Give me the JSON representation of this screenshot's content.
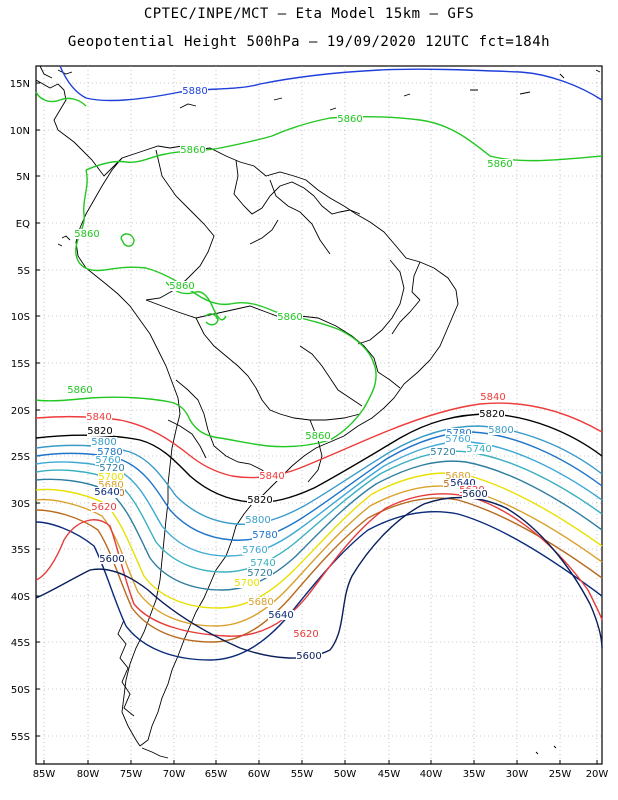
{
  "title_line1": "CPTEC/INPE/MCT –   Eta Model 15km – GFS",
  "title_line2": "Geopotential Height 500hPa – 19/09/2020 12UTC fct=184h",
  "lat_ticks": [
    "15N",
    "10N",
    "5N",
    "EQ",
    "5S",
    "10S",
    "15S",
    "20S",
    "25S",
    "30S",
    "35S",
    "40S",
    "45S",
    "50S",
    "55S"
  ],
  "lon_ticks": [
    "85W",
    "80W",
    "75W",
    "70W",
    "65W",
    "60W",
    "55W",
    "50W",
    "45W",
    "40W",
    "35W",
    "30W",
    "25W",
    "20W"
  ],
  "colors": {
    "5880": "#1f3fd9",
    "5860": "#22c722",
    "5840": "#ee3b3b",
    "5820": "#000000",
    "5800": "#3a9bc8",
    "5780": "#1e74c8",
    "5760": "#3ea8d6",
    "5740": "#3ab0c0",
    "5720": "#2f7ea0",
    "5700": "#e8e000",
    "5680": "#d9a12a",
    "5660": "#b86a1e",
    "5640": "#0a2a7a",
    "5620": "#e53b3b",
    "5600": "#0a1e5a"
  },
  "contour_labels": [
    {
      "text": "5880",
      "level": "5880"
    },
    {
      "text": "5860",
      "level": "5860"
    },
    {
      "text": "5860",
      "level": "5860"
    },
    {
      "text": "5860",
      "level": "5860"
    },
    {
      "text": "5860",
      "level": "5860"
    },
    {
      "text": "5860",
      "level": "5860"
    },
    {
      "text": "5860",
      "level": "5860"
    },
    {
      "text": "5860",
      "level": "5860"
    },
    {
      "text": "5860",
      "level": "5860"
    },
    {
      "text": "5840",
      "level": "5840"
    },
    {
      "text": "5840",
      "level": "5840"
    },
    {
      "text": "5840",
      "level": "5840"
    },
    {
      "text": "5820",
      "level": "5820"
    },
    {
      "text": "5820",
      "level": "5820"
    },
    {
      "text": "5820",
      "level": "5820"
    },
    {
      "text": "5800",
      "level": "5800"
    },
    {
      "text": "5800",
      "level": "5800"
    },
    {
      "text": "5800",
      "level": "5800"
    },
    {
      "text": "5780",
      "level": "5780"
    },
    {
      "text": "5780",
      "level": "5780"
    },
    {
      "text": "5780",
      "level": "5780"
    },
    {
      "text": "5760",
      "level": "5760"
    },
    {
      "text": "5760",
      "level": "5760"
    },
    {
      "text": "5760",
      "level": "5760"
    },
    {
      "text": "5740",
      "level": "5740"
    },
    {
      "text": "5740",
      "level": "5740"
    },
    {
      "text": "5720",
      "level": "5720"
    },
    {
      "text": "5720",
      "level": "5720"
    },
    {
      "text": "5720",
      "level": "5720"
    },
    {
      "text": "5700",
      "level": "5700"
    },
    {
      "text": "5700",
      "level": "5700"
    },
    {
      "text": "5680",
      "level": "5680"
    },
    {
      "text": "5680",
      "level": "5680"
    },
    {
      "text": "5680",
      "level": "5680"
    },
    {
      "text": "5660",
      "level": "5660"
    },
    {
      "text": "5660",
      "level": "5660"
    },
    {
      "text": "5640",
      "level": "5640"
    },
    {
      "text": "5640",
      "level": "5640"
    },
    {
      "text": "5640",
      "level": "5640"
    },
    {
      "text": "5620",
      "level": "5620"
    },
    {
      "text": "5620",
      "level": "5620"
    },
    {
      "text": "5620",
      "level": "5620"
    },
    {
      "text": "5600",
      "level": "5600"
    },
    {
      "text": "5600",
      "level": "5600"
    },
    {
      "text": "5600",
      "level": "5600"
    }
  ]
}
